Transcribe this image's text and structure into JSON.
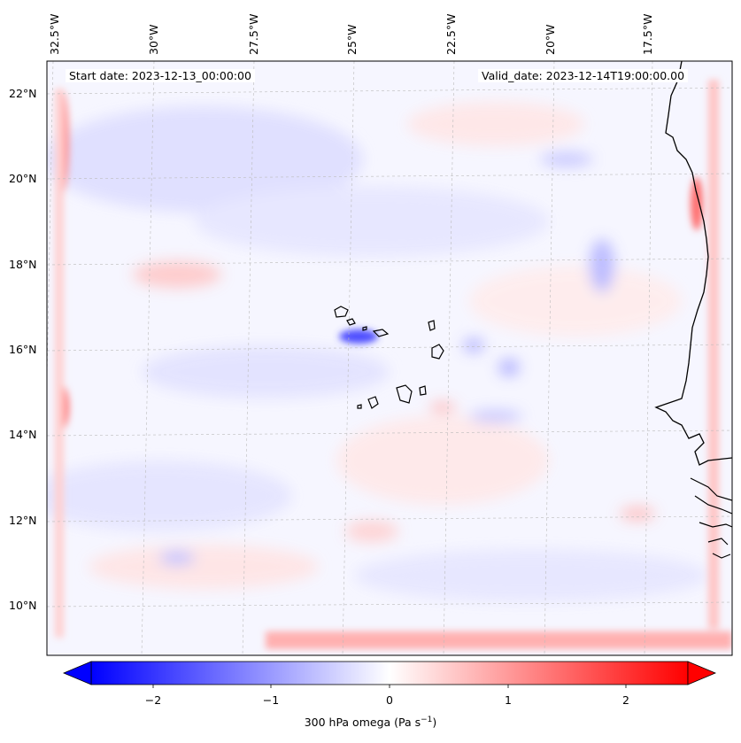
{
  "map": {
    "start_date_text": "Start date: 2023-12-13_00:00:00",
    "valid_date_text": "Valid_date: 2023-12-14T19:00:00.00",
    "longitude_labels": [
      "32.5°W",
      "30°W",
      "27.5°W",
      "25°W",
      "22.5°W",
      "20°W",
      "17.5°W"
    ],
    "latitude_labels": [
      "22°N",
      "20°N",
      "18°N",
      "16°N",
      "14°N",
      "12°N",
      "10°N"
    ],
    "gridlines": true,
    "features": [
      "coastline-west-africa",
      "cape-verde-islands"
    ],
    "field": "300 hPa omega",
    "colormap": "bwr"
  },
  "colorbar": {
    "label_text": "300 hPa omega (Pa s",
    "label_superscript": "−1",
    "label_suffix": ")",
    "ticks": [
      "−2",
      "−1",
      "0",
      "1",
      "2"
    ],
    "tick_values": [
      -2,
      -1,
      0,
      1,
      2
    ],
    "range": [
      -2.75,
      2.75
    ],
    "extend": "both",
    "colors": {
      "min": "#0000ff",
      "mid": "#ffffff",
      "max": "#ff0000"
    }
  }
}
